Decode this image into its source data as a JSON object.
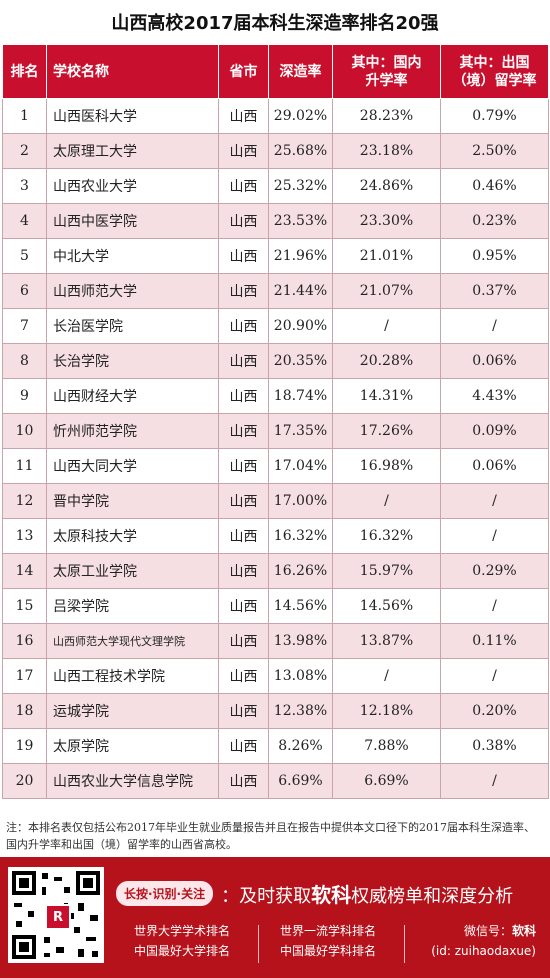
{
  "title": "山西高校2017届本科生深造率排名20强",
  "headers": {
    "rank": "排名",
    "school": "学校名称",
    "province": "省市",
    "rate": "深造率",
    "domestic": [
      "其中：国内",
      "升学率"
    ],
    "abroad": [
      "其中：出国",
      "（境）留学率"
    ]
  },
  "rows": [
    {
      "rank": "1",
      "school": "山西医科大学",
      "province": "山西",
      "rate": "29.02%",
      "domestic": "28.23%",
      "abroad": "0.79%"
    },
    {
      "rank": "2",
      "school": "太原理工大学",
      "province": "山西",
      "rate": "25.68%",
      "domestic": "23.18%",
      "abroad": "2.50%"
    },
    {
      "rank": "3",
      "school": "山西农业大学",
      "province": "山西",
      "rate": "25.32%",
      "domestic": "24.86%",
      "abroad": "0.46%"
    },
    {
      "rank": "4",
      "school": "山西中医学院",
      "province": "山西",
      "rate": "23.53%",
      "domestic": "23.30%",
      "abroad": "0.23%"
    },
    {
      "rank": "5",
      "school": "中北大学",
      "province": "山西",
      "rate": "21.96%",
      "domestic": "21.01%",
      "abroad": "0.95%"
    },
    {
      "rank": "6",
      "school": "山西师范大学",
      "province": "山西",
      "rate": "21.44%",
      "domestic": "21.07%",
      "abroad": "0.37%"
    },
    {
      "rank": "7",
      "school": "长治医学院",
      "province": "山西",
      "rate": "20.90%",
      "domestic": "/",
      "abroad": "/"
    },
    {
      "rank": "8",
      "school": "长治学院",
      "province": "山西",
      "rate": "20.35%",
      "domestic": "20.28%",
      "abroad": "0.06%"
    },
    {
      "rank": "9",
      "school": "山西财经大学",
      "province": "山西",
      "rate": "18.74%",
      "domestic": "14.31%",
      "abroad": "4.43%"
    },
    {
      "rank": "10",
      "school": "忻州师范学院",
      "province": "山西",
      "rate": "17.35%",
      "domestic": "17.26%",
      "abroad": "0.09%"
    },
    {
      "rank": "11",
      "school": "山西大同大学",
      "province": "山西",
      "rate": "17.04%",
      "domestic": "16.98%",
      "abroad": "0.06%"
    },
    {
      "rank": "12",
      "school": "晋中学院",
      "province": "山西",
      "rate": "17.00%",
      "domestic": "/",
      "abroad": "/"
    },
    {
      "rank": "13",
      "school": "太原科技大学",
      "province": "山西",
      "rate": "16.32%",
      "domestic": "16.32%",
      "abroad": "/"
    },
    {
      "rank": "14",
      "school": "太原工业学院",
      "province": "山西",
      "rate": "16.26%",
      "domestic": "15.97%",
      "abroad": "0.29%"
    },
    {
      "rank": "15",
      "school": "吕梁学院",
      "province": "山西",
      "rate": "14.56%",
      "domestic": "14.56%",
      "abroad": "/"
    },
    {
      "rank": "16",
      "school": "山西师范大学现代文理学院",
      "province": "山西",
      "rate": "13.98%",
      "domestic": "13.87%",
      "abroad": "0.11%"
    },
    {
      "rank": "17",
      "school": "山西工程技术学院",
      "province": "山西",
      "rate": "13.08%",
      "domestic": "/",
      "abroad": "/"
    },
    {
      "rank": "18",
      "school": "运城学院",
      "province": "山西",
      "rate": "12.38%",
      "domestic": "12.18%",
      "abroad": "0.20%"
    },
    {
      "rank": "19",
      "school": "太原学院",
      "province": "山西",
      "rate": "8.26%",
      "domestic": "7.88%",
      "abroad": "0.38%"
    },
    {
      "rank": "20",
      "school": "山西农业大学信息学院",
      "province": "山西",
      "rate": "6.69%",
      "domestic": "6.69%",
      "abroad": "/"
    }
  ],
  "note": "注：本排名表仅包括公布2017年毕业生就业质量报告并且在报告中提供本文口径下的2017届本科生深造率、国内升学率和出国（境）留学率的山西省高校。",
  "footer": {
    "pill": "长按·识别·关注",
    "cta_prefix": "：及时获取",
    "cta_brand": "软科",
    "cta_suffix": "权威榜单和深度分析",
    "links_col1": [
      "世界大学学术排名",
      "中国最好大学排名"
    ],
    "links_col2": [
      "世界一流学科排名",
      "中国最好学科排名"
    ],
    "wechat_label": "微信号：",
    "wechat_brand": "软科",
    "wechat_id": "(id: zuihaodaxue)"
  },
  "colors": {
    "header_bg": "#c8102e",
    "stripe": "#f6dfe3",
    "footer_bg": "#b5121b"
  }
}
